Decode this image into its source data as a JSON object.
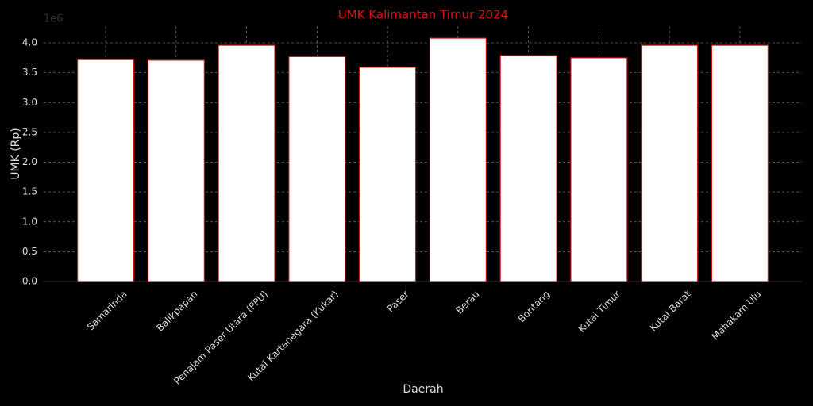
{
  "chart_data": {
    "type": "bar",
    "title": "UMK Kalimantan Timur 2024",
    "x_label": "Daerah",
    "y_label": "UMK (Rp)",
    "y_offset_label": "1e6",
    "categories": [
      "Samarinda",
      "Balikpapan",
      "Penajam Paser Utara (PPU)",
      "Kutai Kartanegara (Kukar)",
      "Paser",
      "Berau",
      "Bontang",
      "Kutai Timur",
      "Kutai Barat",
      "Mahakam Ulu"
    ],
    "values": [
      3.72,
      3.71,
      3.96,
      3.77,
      3.59,
      4.08,
      3.79,
      3.75,
      3.96,
      3.96
    ],
    "color": "#ffffff",
    "edge_color": "#cc1111",
    "ylim": [
      0,
      4.28
    ],
    "yticks": [
      {
        "value": 0,
        "label": "0.0"
      },
      0.5,
      {
        "value": 1,
        "label": "1.0"
      },
      1.5,
      {
        "value": 2,
        "label": "2.0"
      },
      2.5,
      {
        "value": 3,
        "label": "3.0"
      },
      3.5,
      {
        "value": 4,
        "label": "4.0"
      }
    ],
    "grid": true
  }
}
